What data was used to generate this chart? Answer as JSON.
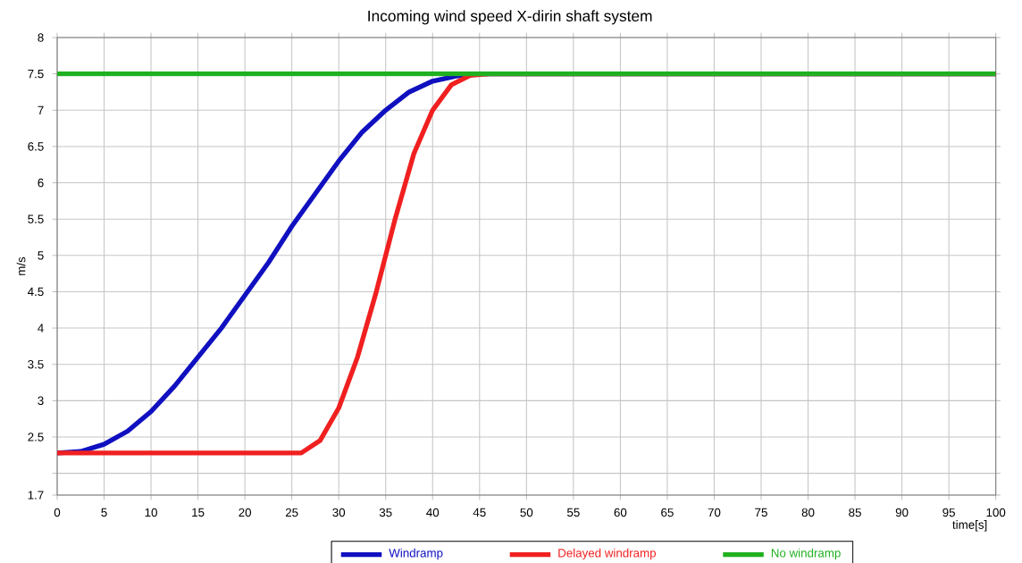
{
  "chart_data": {
    "type": "line",
    "title": "Incoming wind speed X-dirin shaft system",
    "xlabel": "time[s]",
    "ylabel": "m/s",
    "xlim": [
      0,
      100
    ],
    "xticks": [
      0,
      5,
      10,
      15,
      20,
      25,
      30,
      35,
      40,
      45,
      50,
      55,
      60,
      65,
      70,
      75,
      80,
      85,
      90,
      95,
      100
    ],
    "ylim": [
      1.7,
      8
    ],
    "yticks": [
      1.7,
      {
        "value": 2,
        "label": null
      },
      2.5,
      3,
      3.5,
      4,
      4.5,
      5,
      5.5,
      6,
      6.5,
      7,
      7.5,
      8
    ],
    "grid": true,
    "legend": "bottom",
    "line_style": "solid",
    "series": [
      {
        "name": "Windramp",
        "color": "#1010c0",
        "x": [
          0,
          2.5,
          5,
          7.5,
          10,
          12.5,
          15,
          17.5,
          20,
          22.5,
          25,
          27.5,
          30,
          32.5,
          35,
          37.5,
          40,
          42.5,
          45,
          100
        ],
        "values": [
          2.28,
          2.3,
          2.4,
          2.58,
          2.85,
          3.2,
          3.6,
          4.0,
          4.45,
          4.9,
          5.4,
          5.85,
          6.3,
          6.7,
          7.0,
          7.25,
          7.4,
          7.47,
          7.5,
          7.5
        ]
      },
      {
        "name": "Delayed windramp",
        "color": "#f02020",
        "x": [
          0,
          26,
          28,
          30,
          32,
          34,
          36,
          38,
          40,
          42,
          44,
          46,
          100
        ],
        "values": [
          2.28,
          2.28,
          2.45,
          2.9,
          3.6,
          4.5,
          5.5,
          6.4,
          7.0,
          7.35,
          7.48,
          7.5,
          7.5
        ]
      },
      {
        "name": "No windramp",
        "color": "#20b020",
        "x": [
          0,
          100
        ],
        "values": [
          7.5,
          7.5
        ]
      }
    ]
  }
}
